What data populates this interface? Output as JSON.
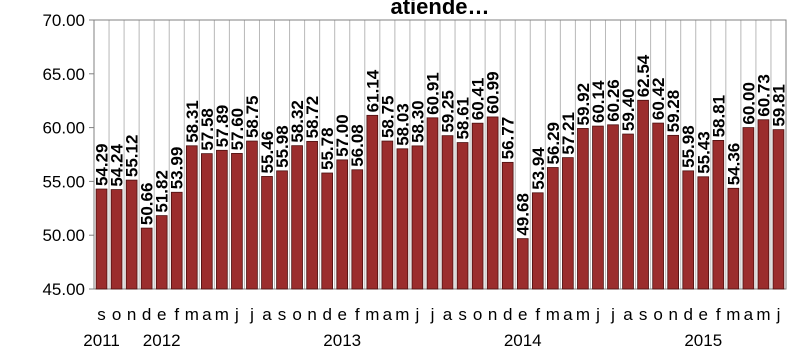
{
  "chart_data": {
    "type": "bar",
    "title": "atiende…",
    "xlabel": "",
    "ylabel": "",
    "ylim": [
      45,
      70
    ],
    "yticks": [
      "45.00",
      "50.00",
      "55.00",
      "60.00",
      "65.00",
      "70.00"
    ],
    "grid": "vertical",
    "legend": "none",
    "bar_color": "#9b2d2d",
    "bar_edge_color": "#4a0f0f",
    "categories": [
      "s",
      "o",
      "n",
      "d",
      "e",
      "f",
      "m",
      "a",
      "m",
      "j",
      "j",
      "a",
      "s",
      "o",
      "n",
      "d",
      "e",
      "f",
      "m",
      "a",
      "m",
      "j",
      "j",
      "a",
      "s",
      "o",
      "n",
      "d",
      "e",
      "f",
      "m",
      "a",
      "m",
      "j",
      "j",
      "a",
      "s",
      "o",
      "n",
      "d",
      "e",
      "f",
      "m",
      "a",
      "m",
      "j"
    ],
    "year_labels": [
      {
        "index": 0,
        "label": "2011"
      },
      {
        "index": 4,
        "label": "2012"
      },
      {
        "index": 16,
        "label": "2013"
      },
      {
        "index": 28,
        "label": "2014"
      },
      {
        "index": 40,
        "label": "2015"
      }
    ],
    "values": [
      54.29,
      54.24,
      55.12,
      50.66,
      51.82,
      53.99,
      58.31,
      57.58,
      57.89,
      57.6,
      58.75,
      55.46,
      55.98,
      58.32,
      58.72,
      55.78,
      57.0,
      56.08,
      61.14,
      58.75,
      58.03,
      58.3,
      60.91,
      59.25,
      58.61,
      60.41,
      60.99,
      56.77,
      49.68,
      53.94,
      56.29,
      57.21,
      59.92,
      60.14,
      60.26,
      59.4,
      62.54,
      60.42,
      59.28,
      55.98,
      55.43,
      58.81,
      54.36,
      60.0,
      60.73,
      59.81
    ],
    "data_labels": [
      "54.29",
      "54.24",
      "55.12",
      "50.66",
      "51.82",
      "53.99",
      "58.31",
      "57.58",
      "57.89",
      "57.60",
      "58.75",
      "55.46",
      "55.98",
      "58.32",
      "58.72",
      "55.78",
      "57.00",
      "56.08",
      "61.14",
      "58.75",
      "58.03",
      "58.30",
      "60.91",
      "59.25",
      "58.61",
      "60.41",
      "60.99",
      "56.77",
      "49.68",
      "53.94",
      "56.29",
      "57.21",
      "59.92",
      "60.14",
      "60.26",
      "59.40",
      "62.54",
      "60.42",
      "59.28",
      "55.98",
      "55.43",
      "58.81",
      "54.36",
      "60.00",
      "60.73",
      "59.81"
    ]
  }
}
